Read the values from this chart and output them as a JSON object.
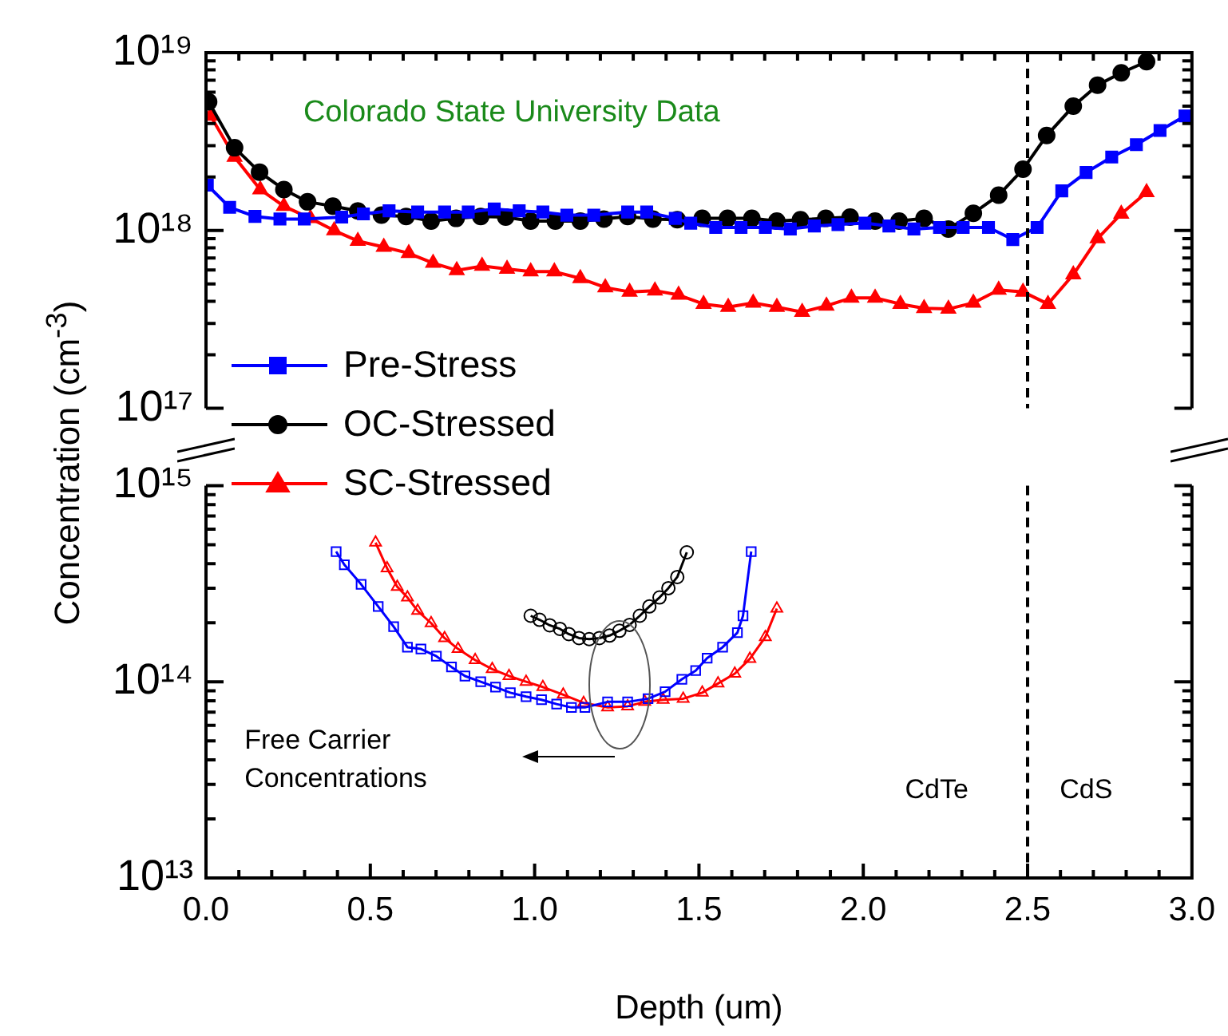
{
  "chart_data": [
    {
      "type": "line",
      "ylabel": "Concentration (cm$^{-3}$)",
      "log": true,
      "legend": "bottom left",
      "tick_labels": "y",
      "xlim": [
        0,
        3
      ],
      "xticks": [
        {
          "value": 0,
          "label": null
        },
        {
          "value": 0.1,
          "label": null
        },
        {
          "value": 0.2,
          "label": null
        },
        {
          "value": 0.3,
          "label": null
        },
        {
          "value": 0.4,
          "label": null
        },
        {
          "value": 0.5,
          "label": null
        },
        {
          "value": 0.6,
          "label": null
        },
        {
          "value": 0.7,
          "label": null
        },
        {
          "value": 0.8,
          "label": null
        },
        {
          "value": 0.9,
          "label": null
        },
        {
          "value": 1,
          "label": null
        },
        {
          "value": 1.1,
          "label": null
        },
        {
          "value": 1.2,
          "label": null
        },
        {
          "value": 1.3,
          "label": null
        },
        {
          "value": 1.4,
          "label": null
        },
        {
          "value": 1.5,
          "label": null
        },
        {
          "value": 1.6,
          "label": null
        },
        {
          "value": 1.7,
          "label": null
        },
        {
          "value": 1.8,
          "label": null
        },
        {
          "value": 1.9,
          "label": null
        },
        {
          "value": 2,
          "label": null
        },
        {
          "value": 2.1,
          "label": null
        },
        {
          "value": 2.2,
          "label": null
        },
        {
          "value": 2.3,
          "label": null
        },
        {
          "value": 2.4,
          "label": null
        },
        {
          "value": 2.5,
          "label": null
        },
        {
          "value": 2.6,
          "label": null
        },
        {
          "value": 2.7,
          "label": null
        },
        {
          "value": 2.8,
          "label": null
        },
        {
          "value": 2.9,
          "label": null
        },
        {
          "value": 3,
          "label": null
        }
      ],
      "ylim": [
        1e+17,
        1e+19
      ],
      "yticks": [
        {
          "value": 1e+17,
          "label": "10¹⁷"
        },
        {
          "value": 2e+17,
          "label": null
        },
        {
          "value": 3e+17,
          "label": null
        },
        {
          "value": 4e+17,
          "label": null
        },
        {
          "value": 5e+17,
          "label": null
        },
        {
          "value": 6e+17,
          "label": null
        },
        {
          "value": 7e+17,
          "label": null
        },
        {
          "value": 8e+17,
          "label": null
        },
        {
          "value": 9e+17,
          "label": null
        },
        {
          "value": 1e+18,
          "label": "10¹⁸"
        },
        {
          "value": 2e+18,
          "label": null
        },
        {
          "value": 3e+18,
          "label": null
        },
        {
          "value": 4e+18,
          "label": null
        },
        {
          "value": 5e+18,
          "label": null
        },
        {
          "value": 6e+18,
          "label": null
        },
        {
          "value": 7e+18,
          "label": null
        },
        {
          "value": 8e+18,
          "label": null
        },
        {
          "value": 9e+18,
          "label": null
        },
        {
          "value": 1e+19,
          "label": "10¹⁹"
        }
      ],
      "ref_lines": [
        {
          "axis": "x",
          "value": 2.5,
          "line_style": "dashed",
          "color": "#000000"
        }
      ],
      "annotations": [
        "Colorado State University Data"
      ],
      "series": [
        {
          "name": "Pre-Stress",
          "color": "#0000ff",
          "marker": "square",
          "x": [
            0.004,
            0.072,
            0.149,
            0.225,
            0.299,
            0.413,
            0.479,
            0.557,
            0.644,
            0.726,
            0.798,
            0.877,
            0.953,
            1.025,
            1.098,
            1.18,
            1.283,
            1.341,
            1.428,
            1.475,
            1.551,
            1.628,
            1.702,
            1.778,
            1.851,
            1.923,
            2.005,
            2.078,
            2.154,
            2.232,
            2.304,
            2.381,
            2.455,
            2.529,
            2.604,
            2.678,
            2.756,
            2.831,
            2.903,
            2.979
          ],
          "values": [
            1.8e+18,
            1.35e+18,
            1.2e+18,
            1.16e+18,
            1.16e+18,
            1.19e+18,
            1.24e+18,
            1.29e+18,
            1.27e+18,
            1.27e+18,
            1.27e+18,
            1.32e+18,
            1.29e+18,
            1.27e+18,
            1.22e+18,
            1.22e+18,
            1.27e+18,
            1.27e+18,
            1.17e+18,
            1.1e+18,
            1.04e+18,
            1.04e+18,
            1.04e+18,
            1.02e+18,
            1.06e+18,
            1.08e+18,
            1.1e+18,
            1.06e+18,
            1.02e+18,
            1.04e+18,
            1.04e+18,
            1.04e+18,
            8.9e+17,
            1.04e+18,
            1.67e+18,
            2.12e+18,
            2.59e+18,
            3.04e+18,
            3.65e+18,
            4.41e+18
          ]
        },
        {
          "name": "OC-Stressed",
          "color": "#000000",
          "marker": "circle",
          "x": [
            0.008,
            0.087,
            0.163,
            0.237,
            0.309,
            0.386,
            0.462,
            0.534,
            0.609,
            0.685,
            0.761,
            0.836,
            0.912,
            0.988,
            1.063,
            1.139,
            1.211,
            1.283,
            1.36,
            1.434,
            1.51,
            1.587,
            1.661,
            1.737,
            1.809,
            1.886,
            1.96,
            2.036,
            2.109,
            2.185,
            2.259,
            2.335,
            2.412,
            2.486,
            2.558,
            2.639,
            2.713,
            2.785,
            2.862
          ],
          "values": [
            5.3e+18,
            2.92e+18,
            2.13e+18,
            1.7e+18,
            1.45e+18,
            1.37e+18,
            1.29e+18,
            1.22e+18,
            1.2e+18,
            1.13e+18,
            1.17e+18,
            1.2e+18,
            1.19e+18,
            1.13e+18,
            1.13e+18,
            1.13e+18,
            1.16e+18,
            1.2e+18,
            1.16e+18,
            1.15e+18,
            1.17e+18,
            1.17e+18,
            1.17e+18,
            1.13e+18,
            1.15e+18,
            1.17e+18,
            1.19e+18,
            1.13e+18,
            1.13e+18,
            1.17e+18,
            1.02e+18,
            1.25e+18,
            1.58e+18,
            2.21e+18,
            3.42e+18,
            5e+18,
            6.57e+18,
            7.7e+18,
            8.9e+18
          ]
        },
        {
          "name": "SC-Stressed",
          "color": "#ff0000",
          "marker": "triangle",
          "x": [
            0.014,
            0.087,
            0.165,
            0.237,
            0.318,
            0.39,
            0.462,
            0.541,
            0.617,
            0.691,
            0.763,
            0.84,
            0.916,
            0.988,
            1.06,
            1.139,
            1.215,
            1.289,
            1.366,
            1.438,
            1.514,
            1.589,
            1.665,
            1.737,
            1.814,
            1.888,
            1.964,
            2.036,
            2.113,
            2.185,
            2.259,
            2.335,
            2.412,
            2.486,
            2.562,
            2.639,
            2.713,
            2.785,
            2.862
          ],
          "values": [
            4.41e+18,
            2.59e+18,
            1.7e+18,
            1.37e+18,
            1.17e+18,
            1e+18,
            8.73e+17,
            8.07e+17,
            7.45e+17,
            6.56e+17,
            5.97e+17,
            6.31e+17,
            6.07e+17,
            5.87e+17,
            5.87e+17,
            5.38e+17,
            4.78e+17,
            4.52e+17,
            4.59e+17,
            4.34e+17,
            3.86e+17,
            3.71e+17,
            3.92e+17,
            3.71e+17,
            3.48e+17,
            3.77e+17,
            4.18e+17,
            4.18e+17,
            3.86e+17,
            3.65e+17,
            3.62e+17,
            3.92e+17,
            4.63e+17,
            4.52e+17,
            3.86e+17,
            5.65e+17,
            9.02e+17,
            1.24e+18,
            1.64e+18
          ]
        }
      ]
    },
    {
      "type": "line",
      "xlabel": "Depth (um)",
      "log": true,
      "xlim": [
        0,
        3
      ],
      "xticks": [
        {
          "value": 0,
          "label": "0.0"
        },
        {
          "value": 0.1,
          "label": null
        },
        {
          "value": 0.2,
          "label": null
        },
        {
          "value": 0.3,
          "label": null
        },
        {
          "value": 0.4,
          "label": null
        },
        {
          "value": 0.5,
          "label": "0.5"
        },
        {
          "value": 0.6,
          "label": null
        },
        {
          "value": 0.7,
          "label": null
        },
        {
          "value": 0.8,
          "label": null
        },
        {
          "value": 0.9,
          "label": null
        },
        {
          "value": 1,
          "label": "1.0"
        },
        {
          "value": 1.1,
          "label": null
        },
        {
          "value": 1.2,
          "label": null
        },
        {
          "value": 1.3,
          "label": null
        },
        {
          "value": 1.4,
          "label": null
        },
        {
          "value": 1.5,
          "label": "1.5"
        },
        {
          "value": 1.6,
          "label": null
        },
        {
          "value": 1.7,
          "label": null
        },
        {
          "value": 1.8,
          "label": null
        },
        {
          "value": 1.9,
          "label": null
        },
        {
          "value": 2,
          "label": "2.0"
        },
        {
          "value": 2.1,
          "label": null
        },
        {
          "value": 2.2,
          "label": null
        },
        {
          "value": 2.3,
          "label": null
        },
        {
          "value": 2.4,
          "label": null
        },
        {
          "value": 2.5,
          "label": "2.5"
        },
        {
          "value": 2.6,
          "label": null
        },
        {
          "value": 2.7,
          "label": null
        },
        {
          "value": 2.8,
          "label": null
        },
        {
          "value": 2.9,
          "label": null
        },
        {
          "value": 3,
          "label": "3.0"
        }
      ],
      "ylim": [
        10000000000000.0,
        1000000000000000.0
      ],
      "yticks": [
        {
          "value": 10000000000000.0,
          "label": "10¹³"
        },
        {
          "value": 20000000000000.0,
          "label": null
        },
        {
          "value": 30000000000000.0,
          "label": null
        },
        {
          "value": 40000000000000.0,
          "label": null
        },
        {
          "value": 50000000000000.0,
          "label": null
        },
        {
          "value": 60000000000000.0,
          "label": null
        },
        {
          "value": 70000000000000.0,
          "label": null
        },
        {
          "value": 80000000000000.0,
          "label": null
        },
        {
          "value": 90000000000000.0,
          "label": null
        },
        {
          "value": 100000000000000.0,
          "label": "10¹⁴"
        },
        {
          "value": 200000000000000.0,
          "label": null
        },
        {
          "value": 300000000000000.0,
          "label": null
        },
        {
          "value": 400000000000000.0,
          "label": null
        },
        {
          "value": 500000000000000.0,
          "label": null
        },
        {
          "value": 600000000000000.0,
          "label": null
        },
        {
          "value": 700000000000000.0,
          "label": null
        },
        {
          "value": 800000000000000.0,
          "label": null
        },
        {
          "value": 900000000000000.0,
          "label": null
        },
        {
          "value": 1000000000000000.0,
          "label": "10¹⁵"
        }
      ],
      "ref_lines": [
        {
          "axis": "x",
          "value": 2.5,
          "line_style": "dashed",
          "color": "#000000"
        }
      ],
      "annotations": [
        "Free Carrier Concentrations",
        "CdTe",
        "CdS"
      ],
      "series": [
        {
          "color": "#0000ff",
          "marker": "square",
          "x": [
            0.396,
            0.421,
            0.472,
            0.524,
            0.571,
            0.613,
            0.654,
            0.701,
            0.747,
            0.788,
            0.836,
            0.881,
            0.926,
            0.974,
            1.021,
            1.067,
            1.112,
            1.153,
            1.222,
            1.283,
            1.345,
            1.397,
            1.448,
            1.49,
            1.525,
            1.572,
            1.617,
            1.634,
            1.659
          ],
          "values": [
            461000000000000.0,
            395000000000000.0,
            314000000000000.0,
            242000000000000.0,
            191000000000000.0,
            150000000000000.0,
            147000000000000.0,
            135000000000000.0,
            119000000000000.0,
            107000000000000.0,
            100000000000000.0,
            94000000000000.0,
            88000000000000.0,
            84000000000000.0,
            81000000000000.0,
            77000000000000.0,
            74000000000000.0,
            74000000000000.0,
            79000000000000.0,
            79000000000000.0,
            82000000000000.0,
            89000000000000.0,
            103000000000000.0,
            114000000000000.0,
            132000000000000.0,
            150000000000000.0,
            178000000000000.0,
            217000000000000.0,
            461000000000000.0
          ]
        },
        {
          "color": "#ff0000",
          "marker": "triangle",
          "x": [
            0.516,
            0.551,
            0.582,
            0.613,
            0.644,
            0.685,
            0.726,
            0.767,
            0.819,
            0.871,
            0.922,
            0.974,
            1.025,
            1.087,
            1.149,
            1.222,
            1.283,
            1.335,
            1.391,
            1.452,
            1.51,
            1.558,
            1.609,
            1.655,
            1.702,
            1.737
          ],
          "values": [
            512000000000000.0,
            379000000000000.0,
            305000000000000.0,
            269000000000000.0,
            230000000000000.0,
            199000000000000.0,
            167000000000000.0,
            147000000000000.0,
            129000000000000.0,
            116000000000000.0,
            107000000000000.0,
            100000000000000.0,
            94000000000000.0,
            86000000000000.0,
            78000000000000.0,
            74000000000000.0,
            75000000000000.0,
            79000000000000.0,
            81000000000000.0,
            82000000000000.0,
            88000000000000.0,
            98000000000000.0,
            110000000000000.0,
            131000000000000.0,
            169000000000000.0,
            236000000000000.0
          ]
        },
        {
          "color": "#000000",
          "marker": "circle",
          "x": [
            0.988,
            1.015,
            1.046,
            1.077,
            1.104,
            1.135,
            1.166,
            1.197,
            1.228,
            1.258,
            1.289,
            1.32,
            1.349,
            1.38,
            1.407,
            1.434,
            1.463
          ],
          "values": [
            217000000000000.0,
            207000000000000.0,
            194000000000000.0,
            186000000000000.0,
            175000000000000.0,
            167000000000000.0,
            165000000000000.0,
            167000000000000.0,
            172000000000000.0,
            182000000000000.0,
            195000000000000.0,
            217000000000000.0,
            242000000000000.0,
            269000000000000.0,
            300000000000000.0,
            342000000000000.0,
            457000000000000.0
          ]
        }
      ]
    }
  ]
}
